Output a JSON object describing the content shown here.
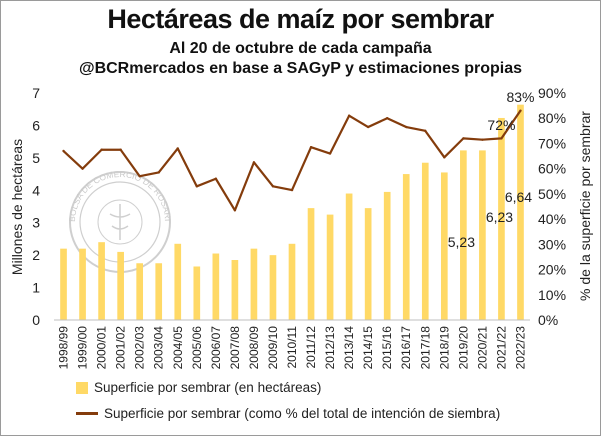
{
  "title": "Hectáreas de maíz por sembrar",
  "subtitle_1": "Al 20 de octubre de cada campaña",
  "subtitle_2": "@BCRmercados en base a SAGyP y estimaciones propias",
  "watermark_text": "BOLSA DE COMERCIO DE ROSARIO",
  "chart_data": {
    "type": "bar",
    "categories": [
      "1998/99",
      "1999/00",
      "2000/01",
      "2001/02",
      "2002/03",
      "2003/04",
      "2004/05",
      "2005/06",
      "2006/07",
      "2007/08",
      "2008/09",
      "2009/10",
      "2010/11",
      "2011/12",
      "2012/13",
      "2013/14",
      "2014/15",
      "2015/16",
      "2016/17",
      "2017/18",
      "2018/19",
      "2019/20",
      "2020/21",
      "2021/22",
      "2022/23"
    ],
    "series": [
      {
        "name": "Superficie por sembrar (en hectáreas)",
        "kind": "bar",
        "axis": "left",
        "color": "#ffd966",
        "values": [
          2.2,
          2.2,
          2.4,
          2.1,
          1.75,
          1.75,
          2.35,
          1.65,
          2.05,
          1.85,
          2.2,
          2.0,
          2.35,
          3.45,
          3.25,
          3.9,
          3.45,
          3.95,
          4.5,
          4.85,
          4.55,
          5.23,
          5.23,
          6.23,
          6.64
        ]
      },
      {
        "name": "Superficie por sembrar (como % del total de intención de siembra)",
        "kind": "line",
        "axis": "right",
        "color": "#843c0c",
        "values": [
          67,
          60,
          67.5,
          67.5,
          57,
          58.5,
          68,
          53,
          56,
          43.5,
          62.5,
          53,
          51.5,
          68.5,
          66,
          81,
          76.5,
          80,
          76.5,
          75,
          64.5,
          72,
          71.5,
          72,
          83
        ]
      }
    ],
    "data_labels": [
      {
        "series": 0,
        "index": 21,
        "text": "5,23"
      },
      {
        "series": 0,
        "index": 23,
        "text": "6,23"
      },
      {
        "series": 0,
        "index": 24,
        "text": "6,64"
      },
      {
        "series": 1,
        "index": 23,
        "text": "72%"
      },
      {
        "series": 1,
        "index": 24,
        "text": "83%"
      }
    ],
    "ylabel": "Millones de hectáreas",
    "y2label": "% de la superficie por sembrar",
    "ylim": [
      0,
      7
    ],
    "y2lim": [
      0,
      90
    ],
    "yticks": [
      "0",
      "1",
      "2",
      "3",
      "4",
      "5",
      "6",
      "7"
    ],
    "y2ticks": [
      "0%",
      "10%",
      "20%",
      "30%",
      "40%",
      "50%",
      "60%",
      "70%",
      "80%",
      "90%"
    ],
    "grid": false,
    "legend_position": "bottom"
  }
}
